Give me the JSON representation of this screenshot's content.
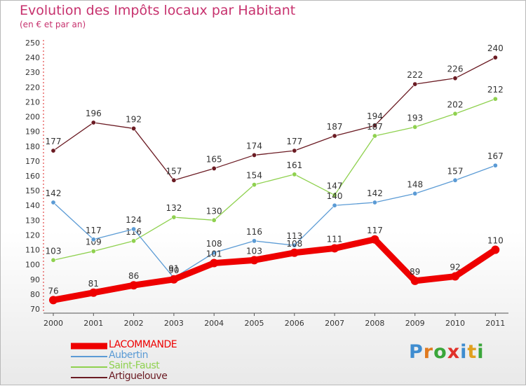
{
  "header": {
    "title": "Evolution des Impôts locaux par Habitant",
    "subtitle": "(en € et par an)"
  },
  "logo": {
    "letters": [
      "P",
      "r",
      "o",
      "x",
      "i",
      "t",
      "i"
    ]
  },
  "chart_data": {
    "type": "line",
    "title": "Evolution des Impôts locaux par Habitant",
    "subtitle": "(en € et par an)",
    "xlabel": "",
    "ylabel": "",
    "ylim": [
      70,
      250
    ],
    "yticks": [
      70,
      80,
      90,
      100,
      110,
      120,
      130,
      140,
      150,
      160,
      170,
      180,
      190,
      200,
      210,
      220,
      230,
      240,
      250
    ],
    "grid": false,
    "legend_position": "bottom-left",
    "x": [
      "2000",
      "2001",
      "2002",
      "2003",
      "2004",
      "2005",
      "2006",
      "2007",
      "2008",
      "2009",
      "2010",
      "2011"
    ],
    "series": [
      {
        "name": "LACOMMANDE",
        "color": "#ee0000",
        "values": [
          76,
          81,
          86,
          90,
          101,
          103,
          108,
          111,
          117,
          89,
          92,
          110
        ]
      },
      {
        "name": "Aubertin",
        "color": "#5b9bd5",
        "values": [
          142,
          117,
          124,
          91,
          108,
          116,
          113,
          140,
          142,
          148,
          157,
          167
        ]
      },
      {
        "name": "Saint-Faust",
        "color": "#8fd14f",
        "values": [
          103,
          109,
          116,
          132,
          130,
          154,
          161,
          147,
          187,
          193,
          202,
          212
        ]
      },
      {
        "name": "Artiguelouve",
        "color": "#6b1b23",
        "values": [
          177,
          196,
          192,
          157,
          165,
          174,
          177,
          187,
          194,
          222,
          226,
          240
        ]
      }
    ]
  }
}
